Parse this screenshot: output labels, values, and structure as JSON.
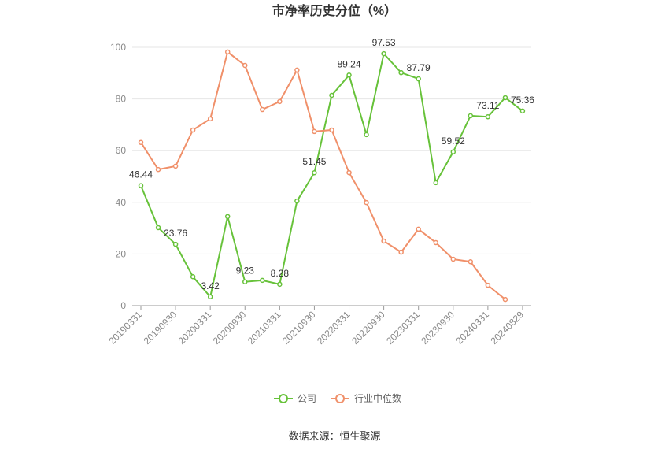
{
  "chart_data": {
    "type": "line",
    "title": "市净率历史分位（%）",
    "source": "数据来源：恒生聚源",
    "categories": [
      "20190331",
      null,
      "20190930",
      null,
      "20200331",
      null,
      "20200930",
      null,
      "20210331",
      null,
      "20210930",
      null,
      "20220331",
      null,
      "20220930",
      null,
      "20230331",
      null,
      "20230930",
      null,
      "20240331",
      null,
      "20240829"
    ],
    "series": [
      {
        "name": "公司",
        "color": "#67c23a",
        "values": [
          46.44,
          30.2,
          23.76,
          11.2,
          3.42,
          34.5,
          9.23,
          9.8,
          8.28,
          40.5,
          51.45,
          81.4,
          89.24,
          66.2,
          97.53,
          90.2,
          87.79,
          47.6,
          59.52,
          73.5,
          73.11,
          80.5,
          75.36
        ],
        "value_labels": [
          "46.44",
          null,
          "23.76",
          null,
          "3.42",
          null,
          "9.23",
          null,
          "8.28",
          null,
          "51.45",
          null,
          "89.24",
          null,
          "97.53",
          null,
          "87.79",
          null,
          "59.52",
          null,
          "73.11",
          null,
          "75.36"
        ]
      },
      {
        "name": "行业中位数",
        "color": "#f0906a",
        "values": [
          63.2,
          52.7,
          54,
          68,
          72.3,
          98.2,
          93,
          75.9,
          79,
          91.2,
          67.4,
          68,
          51.5,
          39.9,
          25,
          20.7,
          29.6,
          24.4,
          18,
          17,
          7.9,
          2.4,
          null
        ]
      }
    ],
    "ylim": [
      0,
      100
    ],
    "yticks": [
      0,
      20,
      40,
      60,
      80,
      100
    ],
    "grid": true,
    "legend": "bottom"
  }
}
